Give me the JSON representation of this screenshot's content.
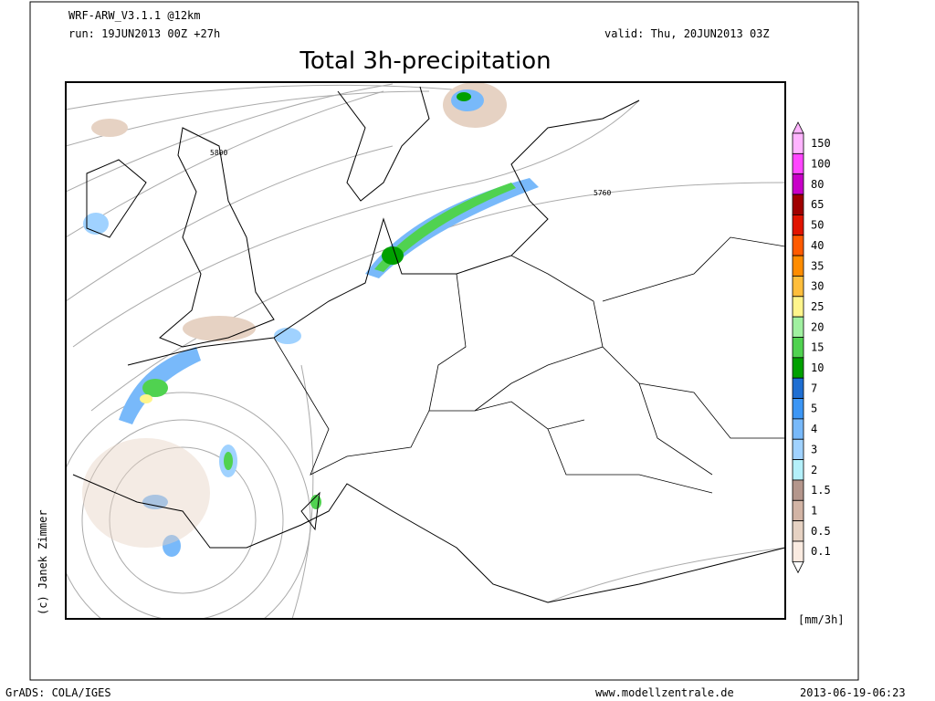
{
  "header": {
    "model": "WRF-ARW_V3.1.1 @12km",
    "run": "run: 19JUN2013 00Z +27h",
    "valid": "valid: Thu, 20JUN2013 03Z",
    "title": "Total 3h-precipitation"
  },
  "map": {
    "contour_labels": [
      "5800",
      "5760"
    ],
    "copyright": "(c) Janek Zimmer"
  },
  "legend": {
    "unit": "[mm/3h]",
    "levels": [
      {
        "label": "150",
        "color": "#ffb4ff"
      },
      {
        "label": "100",
        "color": "#ff46ff"
      },
      {
        "label": "80",
        "color": "#c800c8"
      },
      {
        "label": "65",
        "color": "#a00000"
      },
      {
        "label": "50",
        "color": "#e11400"
      },
      {
        "label": "40",
        "color": "#ff5a00"
      },
      {
        "label": "35",
        "color": "#ff8c00"
      },
      {
        "label": "30",
        "color": "#ffbe3c"
      },
      {
        "label": "25",
        "color": "#fff58c"
      },
      {
        "label": "20",
        "color": "#a0f0a0"
      },
      {
        "label": "15",
        "color": "#50d250"
      },
      {
        "label": "10",
        "color": "#00a000"
      },
      {
        "label": "7",
        "color": "#1e6ed2"
      },
      {
        "label": "5",
        "color": "#3c96f5"
      },
      {
        "label": "4",
        "color": "#78b9fa"
      },
      {
        "label": "3",
        "color": "#a0d2ff"
      },
      {
        "label": "2",
        "color": "#b4f0fa"
      },
      {
        "label": "1.5",
        "color": "#b4968c"
      },
      {
        "label": "1",
        "color": "#d2b4a5"
      },
      {
        "label": "0.5",
        "color": "#e6d2c3"
      },
      {
        "label": "0.1",
        "color": "#faebe1"
      }
    ]
  },
  "footer": {
    "software": "GrADS: COLA/IGES",
    "website": "www.modellzentrale.de",
    "timestamp": "2013-06-19-06:23"
  }
}
